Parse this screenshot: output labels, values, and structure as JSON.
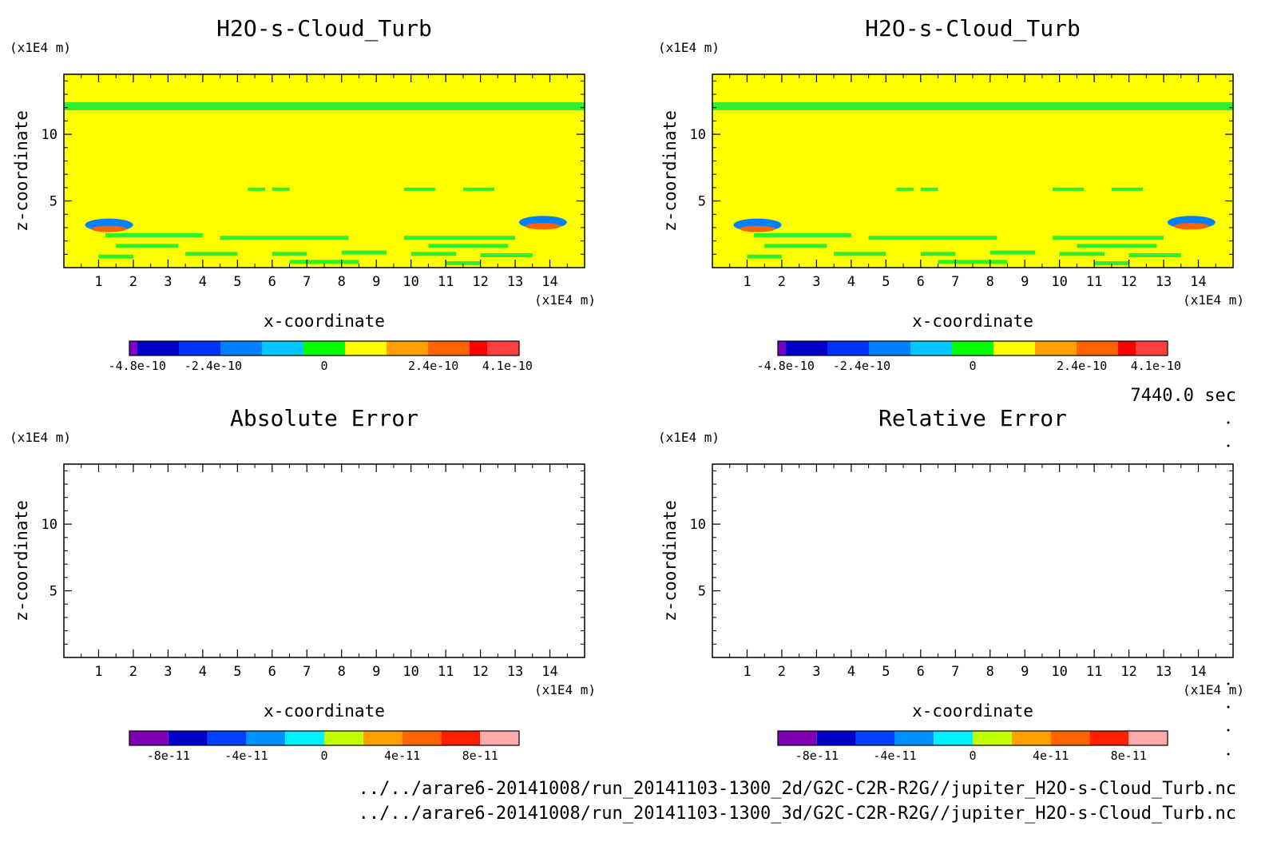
{
  "figure": {
    "time_label": "7440.0 sec",
    "file_paths": [
      "../../arare6-20141008/run_20141103-1300_2d/G2C-C2R-R2G//jupiter_H2O-s-Cloud_Turb.nc",
      "../../arare6-20141008/run_20141103-1300_3d/G2C-C2R-R2G//jupiter_H2O-s-Cloud_Turb.nc"
    ]
  },
  "chart_data": [
    {
      "type": "heatmap",
      "title": "H2O-s-Cloud_Turb",
      "xlabel": "x-coordinate",
      "ylabel": "z-coordinate",
      "x_unit": "(x1E4 m)",
      "z_unit": "(x1E4 m)",
      "xlim": [
        0,
        15
      ],
      "ylim": [
        0,
        14.5
      ],
      "x_ticks": [
        "1",
        "2",
        "3",
        "4",
        "5",
        "6",
        "7",
        "8",
        "9",
        "10",
        "11",
        "12",
        "13",
        "14"
      ],
      "y_ticks": [
        "5",
        "10"
      ],
      "colorbar": {
        "colors": [
          "#7a00c8",
          "#0000c8",
          "#0032ff",
          "#0080ff",
          "#00c8ff",
          "#00ff00",
          "#ffff00",
          "#ffa000",
          "#ff6400",
          "#ff0000",
          "#ff4040"
        ],
        "labels": [
          "-4.8e-10",
          "-2.4e-10",
          "0",
          "2.4e-10",
          "4.1e-10"
        ]
      },
      "field": {
        "background": "#ffff00",
        "band_color": "#30ee30",
        "band_z": [
          11.8,
          12.4
        ],
        "bottom_patch_colors": [
          "#0080ff",
          "#ff6400"
        ]
      }
    },
    {
      "type": "heatmap",
      "title": "H2O-s-Cloud_Turb",
      "xlabel": "x-coordinate",
      "ylabel": "z-coordinate",
      "x_unit": "(x1E4 m)",
      "z_unit": "(x1E4 m)",
      "xlim": [
        0,
        15
      ],
      "ylim": [
        0,
        14.5
      ],
      "x_ticks": [
        "1",
        "2",
        "3",
        "4",
        "5",
        "6",
        "7",
        "8",
        "9",
        "10",
        "11",
        "12",
        "13",
        "14"
      ],
      "y_ticks": [
        "5",
        "10"
      ],
      "colorbar": {
        "colors": [
          "#7a00c8",
          "#0000c8",
          "#0032ff",
          "#0080ff",
          "#00c8ff",
          "#00ff00",
          "#ffff00",
          "#ffa000",
          "#ff6400",
          "#ff0000",
          "#ff4040"
        ],
        "labels": [
          "-4.8e-10",
          "-2.4e-10",
          "0",
          "2.4e-10",
          "4.1e-10"
        ]
      },
      "field": {
        "background": "#ffff00",
        "band_color": "#30ee30",
        "band_z": [
          11.8,
          12.4
        ],
        "bottom_patch_colors": [
          "#0080ff",
          "#ff6400"
        ]
      }
    },
    {
      "type": "heatmap",
      "title": "Absolute Error",
      "xlabel": "x-coordinate",
      "ylabel": "z-coordinate",
      "x_unit": "(x1E4 m)",
      "z_unit": "(x1E4 m)",
      "xlim": [
        0,
        15
      ],
      "ylim": [
        0,
        14.5
      ],
      "x_ticks": [
        "1",
        "2",
        "3",
        "4",
        "5",
        "6",
        "7",
        "8",
        "9",
        "10",
        "11",
        "12",
        "13",
        "14"
      ],
      "y_ticks": [
        "5",
        "10"
      ],
      "colorbar": {
        "colors": [
          "#8000b4",
          "#0000c8",
          "#0040ff",
          "#0090ff",
          "#00f0ff",
          "#c0ff00",
          "#ffa000",
          "#ff6400",
          "#ff2000",
          "#ffaaaa"
        ],
        "labels": [
          "-8e-11",
          "-4e-11",
          "0",
          "4e-11",
          "8e-11"
        ]
      },
      "field": null
    },
    {
      "type": "heatmap",
      "title": "Relative Error",
      "xlabel": "x-coordinate",
      "ylabel": "z-coordinate",
      "x_unit": "(x1E4 m)",
      "z_unit": "(x1E4 m)",
      "xlim": [
        0,
        15
      ],
      "ylim": [
        0,
        14.5
      ],
      "x_ticks": [
        "1",
        "2",
        "3",
        "4",
        "5",
        "6",
        "7",
        "8",
        "9",
        "10",
        "11",
        "12",
        "13",
        "14"
      ],
      "y_ticks": [
        "5",
        "10"
      ],
      "colorbar": {
        "colors": [
          "#8000b4",
          "#0000c8",
          "#0040ff",
          "#0090ff",
          "#00f0ff",
          "#c0ff00",
          "#ffa000",
          "#ff6400",
          "#ff2000",
          "#ffaaaa"
        ],
        "labels": [
          "-8e-11",
          "-4e-11",
          "0",
          "4e-11",
          "8e-11"
        ]
      },
      "field": null
    }
  ]
}
